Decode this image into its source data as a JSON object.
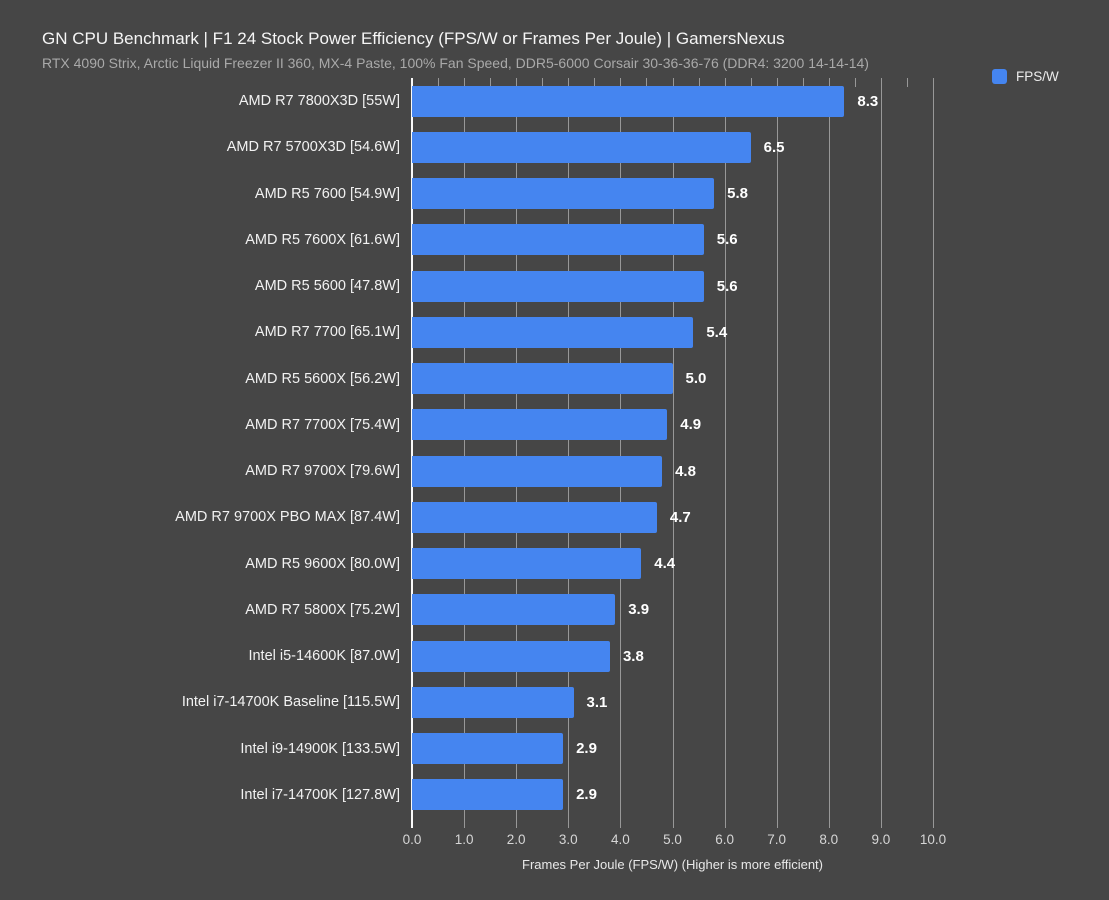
{
  "header": {
    "title": "GN CPU Benchmark | F1 24 Stock Power Efficiency (FPS/W or Frames Per Joule) | GamersNexus",
    "subtitle": "RTX 4090 Strix, Arctic Liquid Freezer II 360, MX-4 Paste, 100% Fan Speed, DDR5-6000 Corsair 30-36-36-76 (DDR4: 3200 14-14-14)"
  },
  "legend": {
    "label": "FPS/W",
    "swatch_color": "#4585f0",
    "position": "top-right"
  },
  "chart_data": {
    "type": "bar",
    "orientation": "horizontal",
    "title": "GN CPU Benchmark | F1 24 Stock Power Efficiency (FPS/W or Frames Per Joule) | GamersNexus",
    "subtitle": "RTX 4090 Strix, Arctic Liquid Freezer II 360, MX-4 Paste, 100% Fan Speed, DDR5-6000 Corsair 30-36-36-76 (DDR4: 3200 14-14-14)",
    "categories": [
      "AMD R7 7800X3D [55W]",
      "AMD R7 5700X3D [54.6W]",
      "AMD R5 7600 [54.9W]",
      "AMD R5 7600X [61.6W]",
      "AMD R5 5600 [47.8W]",
      "AMD R7 7700 [65.1W]",
      "AMD R5 5600X [56.2W]",
      "AMD R7 7700X [75.4W]",
      "AMD R7 9700X [79.6W]",
      "AMD R7 9700X PBO MAX [87.4W]",
      "AMD R5 9600X [80.0W]",
      "AMD R7 5800X [75.2W]",
      "Intel i5-14600K [87.0W]",
      "Intel i7-14700K Baseline [115.5W]",
      "Intel i9-14900K [133.5W]",
      "Intel i7-14700K [127.8W]"
    ],
    "series": [
      {
        "name": "FPS/W",
        "values": [
          8.3,
          6.5,
          5.8,
          5.6,
          5.6,
          5.4,
          5.0,
          4.9,
          4.8,
          4.7,
          4.4,
          3.9,
          3.8,
          3.1,
          2.9,
          2.9
        ]
      }
    ],
    "values": [
      8.3,
      6.5,
      5.8,
      5.6,
      5.6,
      5.4,
      5.0,
      4.9,
      4.8,
      4.7,
      4.4,
      3.9,
      3.8,
      3.1,
      2.9,
      2.9
    ],
    "xlabel": "Frames Per Joule (FPS/W) (Higher is more efficient)",
    "ylabel": "",
    "xlim": [
      0,
      10
    ],
    "xmax": 10,
    "xticks": [
      "0.0",
      "1.0",
      "2.0",
      "3.0",
      "4.0",
      "5.0",
      "6.0",
      "7.0",
      "8.0",
      "9.0",
      "10.0"
    ],
    "grid": "vertical major gridlines every 1.0, minor top ticks every 0.5",
    "bar_color": "#4585f0",
    "background_color": "#464646",
    "gridline_color": "#989898",
    "axis_line_color": "#fafafa"
  }
}
